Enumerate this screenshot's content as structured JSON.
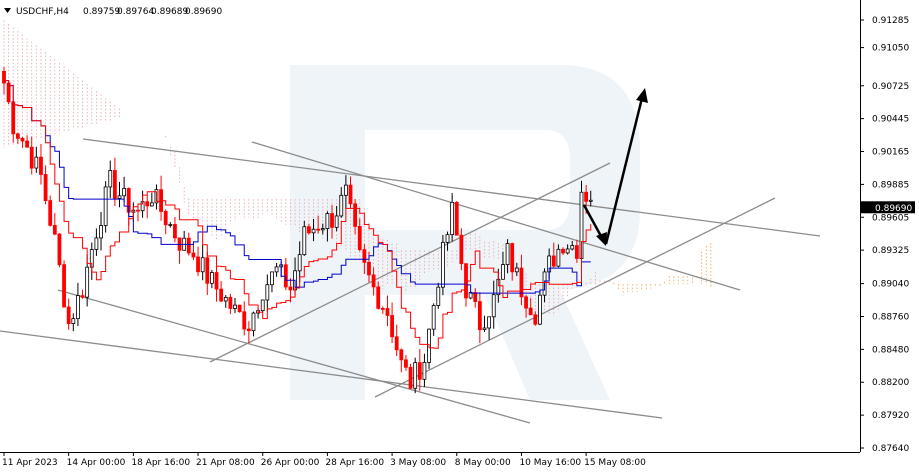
{
  "chart_data": {
    "type": "candlestick",
    "header": {
      "symbol_tf": "USDCHF,H4",
      "open": "0.89759",
      "high": "0.89764",
      "low": "0.89689",
      "close": "0.89690"
    },
    "current_price": 0.8969,
    "current_price_label": "0.89690",
    "ylim": [
      0.8764,
      0.9142
    ],
    "y_ticks": [
      0.91285,
      0.9105,
      0.90725,
      0.90445,
      0.90165,
      0.89885,
      0.89605,
      0.89325,
      0.8904,
      0.8876,
      0.8848,
      0.882,
      0.8792,
      0.8764
    ],
    "y_tick_labels": [
      "0.91285",
      "0.91050",
      "0.90725",
      "0.90445",
      "0.90165",
      "0.89885",
      "0.89605",
      "0.89325",
      "0.89040",
      "0.88760",
      "0.88480",
      "0.88200",
      "0.87920",
      "0.87640"
    ],
    "x_labels": [
      "11 Apr 2023",
      "14 Apr 00:00",
      "18 Apr 16:00",
      "21 Apr 08:00",
      "26 Apr 00:00",
      "28 Apr 16:00",
      "3 May 08:00",
      "8 May 00:00",
      "10 May 16:00",
      "15 May 08:00"
    ],
    "x_label_bars": [
      0,
      14,
      28,
      42,
      56,
      70,
      84,
      98,
      112,
      126
    ],
    "bar_count": 148,
    "candle_close_anchors": [
      [
        0,
        0.9075
      ],
      [
        2,
        0.904
      ],
      [
        5,
        0.902
      ],
      [
        8,
        0.8995
      ],
      [
        11,
        0.894
      ],
      [
        14,
        0.887
      ],
      [
        17,
        0.89
      ],
      [
        20,
        0.895
      ],
      [
        23,
        0.899
      ],
      [
        26,
        0.8975
      ],
      [
        29,
        0.8965
      ],
      [
        32,
        0.898
      ],
      [
        35,
        0.896
      ],
      [
        38,
        0.894
      ],
      [
        41,
        0.893
      ],
      [
        44,
        0.891
      ],
      [
        47,
        0.8895
      ],
      [
        50,
        0.888
      ],
      [
        53,
        0.887
      ],
      [
        56,
        0.89
      ],
      [
        59,
        0.8915
      ],
      [
        62,
        0.89
      ],
      [
        65,
        0.8945
      ],
      [
        68,
        0.8955
      ],
      [
        71,
        0.896
      ],
      [
        74,
        0.898
      ],
      [
        77,
        0.8925
      ],
      [
        80,
        0.89
      ],
      [
        83,
        0.888
      ],
      [
        86,
        0.8835
      ],
      [
        88,
        0.882
      ],
      [
        91,
        0.884
      ],
      [
        94,
        0.891
      ],
      [
        97,
        0.8965
      ],
      [
        100,
        0.89
      ],
      [
        103,
        0.887
      ],
      [
        106,
        0.889
      ],
      [
        109,
        0.893
      ],
      [
        112,
        0.89
      ],
      [
        115,
        0.888
      ],
      [
        118,
        0.892
      ],
      [
        121,
        0.894
      ],
      [
        124,
        0.8935
      ],
      [
        125,
        0.8985
      ],
      [
        127,
        0.8975
      ]
    ],
    "tenkan_sen_color": "#ff0000",
    "kijun_sen_color": "#0000cc",
    "cloud_color": "#e8a0a8",
    "cloud_future_color": "#f2a040",
    "trend_line_color": "#8c8c8c",
    "forecast_arrow_color": "#000000",
    "up_candle_color": "#000000",
    "down_candle_color": "#ff0000",
    "grid": false
  }
}
